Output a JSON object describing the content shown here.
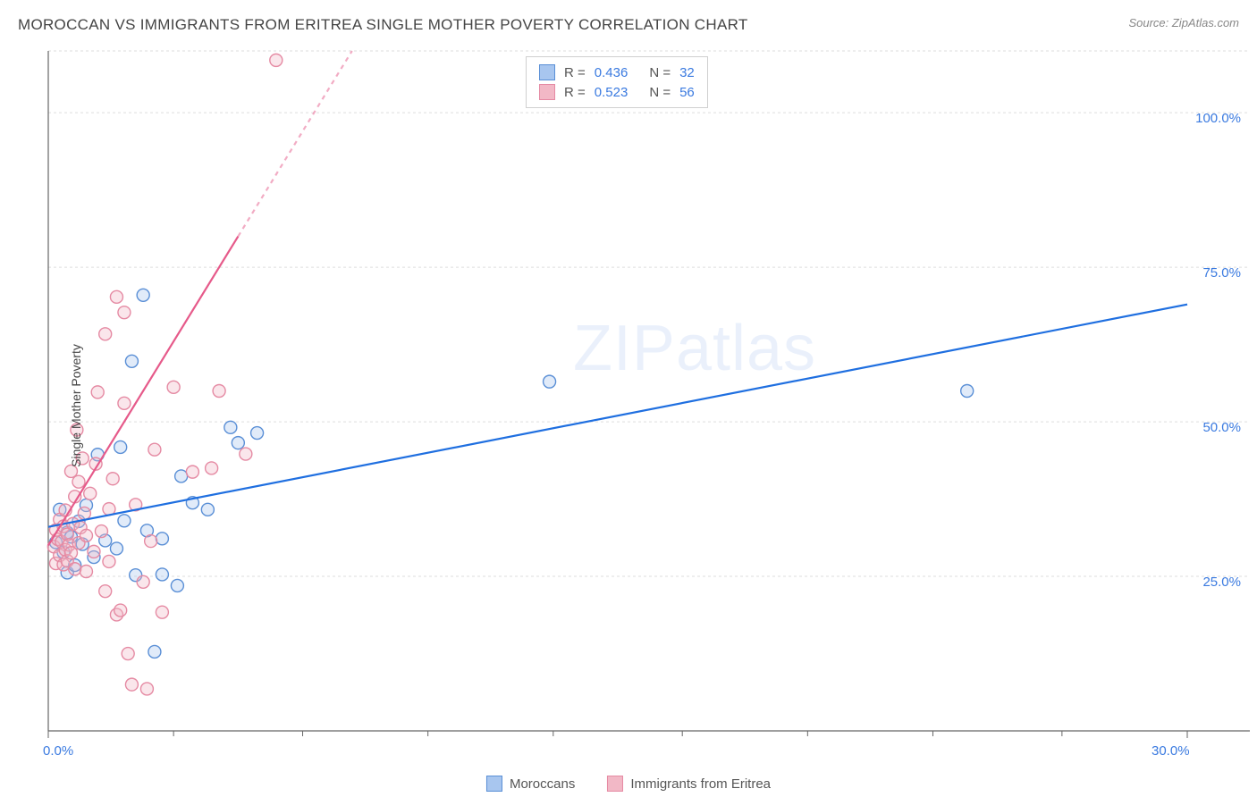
{
  "header": {
    "title": "MOROCCAN VS IMMIGRANTS FROM ERITREA SINGLE MOTHER POVERTY CORRELATION CHART",
    "source_label": "Source: ZipAtlas.com"
  },
  "axes": {
    "y_title": "Single Mother Poverty",
    "x_min": 0.0,
    "x_max": 30.0,
    "y_min": 0.0,
    "y_max": 110.0,
    "x_ticks": [
      0.0,
      30.0
    ],
    "x_tick_labels": [
      "0.0%",
      "30.0%"
    ],
    "x_minor_ticks": [
      3.3,
      6.7,
      10.0,
      13.3,
      16.7,
      20.0,
      23.3,
      26.7
    ],
    "y_gridlines": [
      25.0,
      50.0,
      75.0,
      100.0,
      110.0
    ],
    "y_tick_labels": [
      "25.0%",
      "50.0%",
      "75.0%",
      "100.0%"
    ]
  },
  "styling": {
    "background_color": "#ffffff",
    "axis_color": "#666666",
    "grid_color": "#dddddd",
    "grid_dash": "3,3",
    "tick_label_color": "#3a7ae0",
    "title_color": "#444444",
    "title_fontsize": 17,
    "axis_label_fontsize": 14,
    "tick_fontsize": 15,
    "marker_radius": 7,
    "marker_fill_opacity": 0.35,
    "marker_stroke_width": 1.4,
    "trendline_width": 2.2
  },
  "series": [
    {
      "name": "Moroccans",
      "color_fill": "#a8c6ef",
      "color_stroke": "#5a8fd6",
      "trend_color": "#1f6fe0",
      "R": "0.436",
      "N": "32",
      "trend": {
        "x1": 0.0,
        "y1": 33.0,
        "x2": 30.0,
        "y2": 69.0
      },
      "points": [
        [
          0.2,
          30.5
        ],
        [
          0.3,
          35.8
        ],
        [
          0.4,
          28.9
        ],
        [
          0.5,
          32.1
        ],
        [
          0.5,
          25.6
        ],
        [
          0.6,
          31.4
        ],
        [
          0.7,
          26.8
        ],
        [
          0.8,
          33.9
        ],
        [
          0.9,
          30.2
        ],
        [
          1.0,
          36.5
        ],
        [
          1.2,
          28.1
        ],
        [
          1.3,
          44.7
        ],
        [
          1.5,
          30.8
        ],
        [
          1.8,
          29.5
        ],
        [
          1.9,
          45.9
        ],
        [
          2.2,
          59.8
        ],
        [
          2.3,
          25.2
        ],
        [
          2.5,
          70.5
        ],
        [
          2.6,
          32.4
        ],
        [
          2.8,
          12.8
        ],
        [
          3.0,
          31.1
        ],
        [
          3.0,
          25.3
        ],
        [
          3.4,
          23.5
        ],
        [
          3.5,
          41.2
        ],
        [
          3.8,
          36.9
        ],
        [
          4.2,
          35.8
        ],
        [
          4.8,
          49.1
        ],
        [
          5.0,
          46.6
        ],
        [
          5.5,
          48.2
        ],
        [
          13.2,
          56.5
        ],
        [
          24.2,
          55.0
        ],
        [
          2.0,
          34.0
        ]
      ]
    },
    {
      "name": "Immigrants from Eritrea",
      "color_fill": "#f2b8c6",
      "color_stroke": "#e58aa3",
      "trend_color": "#e65a8a",
      "R": "0.523",
      "N": "56",
      "trend": {
        "x1": 0.0,
        "y1": 30.0,
        "x2": 8.0,
        "y2": 110.0
      },
      "trend_dash_from_y": 80.0,
      "points": [
        [
          0.15,
          29.8
        ],
        [
          0.2,
          32.5
        ],
        [
          0.2,
          27.1
        ],
        [
          0.25,
          31.0
        ],
        [
          0.3,
          34.2
        ],
        [
          0.3,
          28.4
        ],
        [
          0.35,
          30.6
        ],
        [
          0.4,
          26.9
        ],
        [
          0.4,
          33.1
        ],
        [
          0.45,
          29.3
        ],
        [
          0.45,
          35.7
        ],
        [
          0.5,
          31.8
        ],
        [
          0.5,
          27.5
        ],
        [
          0.55,
          30.1
        ],
        [
          0.6,
          42.0
        ],
        [
          0.6,
          28.8
        ],
        [
          0.65,
          33.5
        ],
        [
          0.7,
          37.9
        ],
        [
          0.7,
          26.2
        ],
        [
          0.75,
          48.7
        ],
        [
          0.8,
          30.4
        ],
        [
          0.8,
          40.3
        ],
        [
          0.85,
          32.9
        ],
        [
          0.9,
          44.1
        ],
        [
          0.95,
          35.2
        ],
        [
          1.0,
          31.6
        ],
        [
          1.0,
          25.8
        ],
        [
          1.1,
          38.4
        ],
        [
          1.2,
          29.0
        ],
        [
          1.25,
          43.2
        ],
        [
          1.3,
          54.8
        ],
        [
          1.4,
          32.3
        ],
        [
          1.5,
          22.6
        ],
        [
          1.5,
          64.2
        ],
        [
          1.6,
          35.9
        ],
        [
          1.6,
          27.4
        ],
        [
          1.7,
          40.8
        ],
        [
          1.8,
          70.2
        ],
        [
          1.8,
          18.8
        ],
        [
          1.9,
          19.5
        ],
        [
          2.0,
          53.0
        ],
        [
          2.0,
          67.7
        ],
        [
          2.1,
          12.5
        ],
        [
          2.2,
          7.5
        ],
        [
          2.3,
          36.6
        ],
        [
          2.5,
          24.1
        ],
        [
          2.6,
          6.8
        ],
        [
          2.7,
          30.7
        ],
        [
          2.8,
          45.5
        ],
        [
          3.0,
          19.2
        ],
        [
          3.3,
          55.6
        ],
        [
          3.8,
          41.9
        ],
        [
          4.3,
          42.5
        ],
        [
          4.5,
          55.0
        ],
        [
          5.2,
          44.8
        ],
        [
          6.0,
          108.5
        ]
      ]
    }
  ],
  "legend_top": {
    "r_prefix": "R =",
    "n_prefix": "N ="
  },
  "watermark": {
    "text_bold": "ZIP",
    "text_rest": "atlas"
  }
}
